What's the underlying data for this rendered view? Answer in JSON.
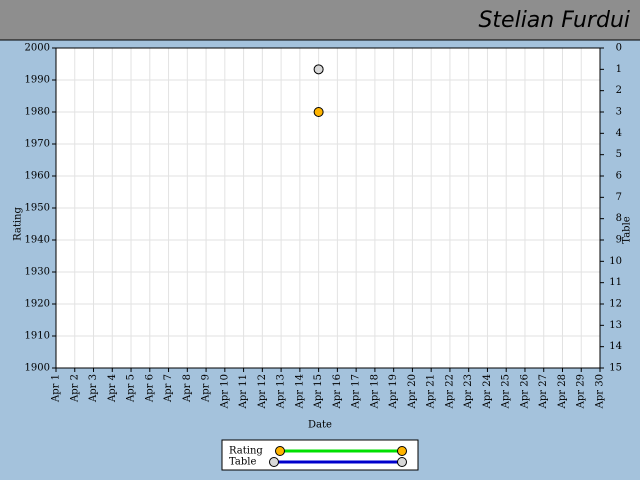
{
  "chart_data": {
    "type": "line",
    "title": "Stelian Furdui",
    "xlabel": "Date",
    "ylabel": "Rating",
    "y2label": "Table",
    "categories": [
      "Apr 1",
      "Apr 2",
      "Apr 3",
      "Apr 4",
      "Apr 5",
      "Apr 6",
      "Apr 7",
      "Apr 8",
      "Apr 9",
      "Apr 10",
      "Apr 11",
      "Apr 12",
      "Apr 13",
      "Apr 14",
      "Apr 15",
      "Apr 16",
      "Apr 17",
      "Apr 18",
      "Apr 19",
      "Apr 20",
      "Apr 21",
      "Apr 22",
      "Apr 23",
      "Apr 24",
      "Apr 25",
      "Apr 26",
      "Apr 27",
      "Apr 28",
      "Apr 29",
      "Apr 30"
    ],
    "series": [
      {
        "name": "Rating",
        "color": "#ffb400",
        "line_color": "#00e000",
        "values": [
          null,
          null,
          null,
          null,
          null,
          null,
          null,
          null,
          null,
          null,
          null,
          null,
          null,
          null,
          1980,
          null,
          null,
          null,
          null,
          null,
          null,
          null,
          null,
          null,
          null,
          null,
          null,
          null,
          null,
          null
        ]
      },
      {
        "name": "Table",
        "color": "#d8d8d8",
        "line_color": "#0000cc",
        "axis": "y2",
        "values": [
          null,
          null,
          null,
          null,
          null,
          null,
          null,
          null,
          null,
          null,
          null,
          null,
          null,
          null,
          1,
          null,
          null,
          null,
          null,
          null,
          null,
          null,
          null,
          null,
          null,
          null,
          null,
          null,
          null,
          null
        ]
      }
    ],
    "ylim": [
      1900,
      2000
    ],
    "yticks": [
      1900,
      1910,
      1920,
      1930,
      1940,
      1950,
      1960,
      1970,
      1980,
      1990,
      2000
    ],
    "y2lim": [
      15,
      0
    ],
    "y2ticks": [
      0,
      1,
      2,
      3,
      4,
      5,
      6,
      7,
      8,
      9,
      10,
      11,
      12,
      13,
      14,
      15
    ],
    "grid": true,
    "legend": "bottom"
  }
}
